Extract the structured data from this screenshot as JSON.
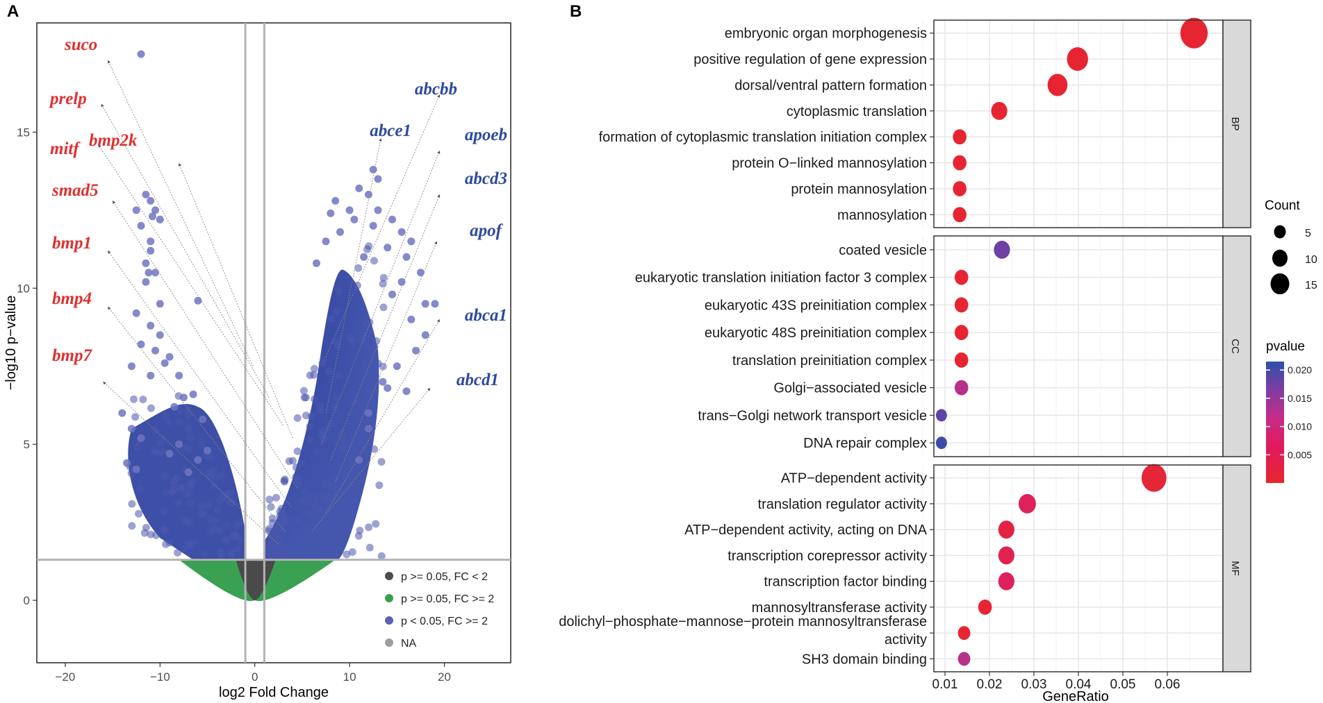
{
  "chart_data": [
    {
      "type": "scatter",
      "panel": "A",
      "xlabel": "log2 Fold Change",
      "ylabel": "−log10 p−value",
      "xlim": [
        -23,
        27
      ],
      "ylim": [
        -2,
        18.5
      ],
      "xticks": [
        -20,
        -10,
        0,
        10,
        20
      ],
      "xtick_labels": [
        "−20",
        "−10",
        "0",
        "10",
        "20"
      ],
      "yticks": [
        0,
        5,
        10,
        15
      ],
      "ytick_labels": [
        "0",
        "5",
        "10",
        "15"
      ],
      "thresholds": {
        "x": [
          -1,
          1
        ],
        "y": 1.3
      },
      "legend": {
        "placement": "bottom-right",
        "entries": [
          {
            "label": "p >= 0.05, FC < 2",
            "color": "#4d4d4d"
          },
          {
            "label": "p >= 0.05, FC >= 2",
            "color": "#3a9f4a"
          },
          {
            "label": "p < 0.05, FC >= 2",
            "color": "#5a62b5"
          },
          {
            "label": "NA",
            "color": "#9e9e9e"
          }
        ]
      },
      "points_sparse": [
        [
          -12,
          17.5
        ],
        [
          -11.5,
          13
        ],
        [
          -11,
          12.8
        ],
        [
          -10.8,
          12.3
        ],
        [
          -10.5,
          12.5
        ],
        [
          -10,
          12.2
        ],
        [
          -11,
          11.5
        ],
        [
          -11,
          11.2
        ],
        [
          -12,
          12
        ],
        [
          -12.5,
          12.5
        ],
        [
          -11.5,
          10.8
        ],
        [
          -11.2,
          10.5
        ],
        [
          -10.5,
          10.5
        ],
        [
          -11.5,
          10.2
        ],
        [
          -10,
          9.5
        ],
        [
          -6,
          9.6
        ],
        [
          -12.5,
          9.2
        ],
        [
          -11,
          8.8
        ],
        [
          -10,
          8.5
        ],
        [
          -12,
          8.2
        ],
        [
          -10.5,
          8
        ],
        [
          -9,
          7.8
        ],
        [
          -11,
          7.2
        ],
        [
          -9.5,
          7.6
        ],
        [
          -8,
          7.2
        ],
        [
          -13,
          7.5
        ],
        [
          -7.5,
          6.5
        ],
        [
          -6.5,
          6.6
        ],
        [
          -8.5,
          6.2
        ],
        [
          -14,
          6
        ],
        [
          -13,
          5.5
        ],
        [
          -12,
          5.2
        ],
        [
          -5.5,
          5.8
        ],
        [
          -6,
          4.5
        ],
        [
          -8,
          5
        ],
        [
          -9,
          4.7
        ],
        [
          -13.5,
          4.4
        ],
        [
          -12.5,
          4.2
        ],
        [
          -7,
          4.1
        ],
        [
          -5,
          4.8
        ],
        [
          6.5,
          10.8
        ],
        [
          7.5,
          11.5
        ],
        [
          8,
          12.4
        ],
        [
          8.5,
          12.8
        ],
        [
          9,
          11.8
        ],
        [
          10,
          12.5
        ],
        [
          11,
          13.2
        ],
        [
          12,
          13
        ],
        [
          12.5,
          13.8
        ],
        [
          13,
          12.5
        ],
        [
          14,
          11.3
        ],
        [
          14.5,
          12.2
        ],
        [
          15.5,
          11.8
        ],
        [
          16.5,
          11.5
        ],
        [
          13,
          13.5
        ],
        [
          10.5,
          12.2
        ],
        [
          16,
          11
        ],
        [
          17.5,
          10.5
        ],
        [
          18,
          9.5
        ],
        [
          16.5,
          9
        ],
        [
          17,
          8
        ],
        [
          15,
          7.5
        ],
        [
          14,
          6.8
        ],
        [
          16,
          6.7
        ],
        [
          18,
          8.5
        ],
        [
          12,
          6
        ],
        [
          19,
          9.5
        ],
        [
          15.5,
          10.2
        ],
        [
          14.5,
          9.8
        ],
        [
          12.5,
          12
        ],
        [
          11.5,
          11
        ],
        [
          13.5,
          7
        ],
        [
          12,
          5.5
        ],
        [
          11,
          4.5
        ]
      ],
      "highlight_labels_left": [
        "suco",
        "prelp",
        "mitf",
        "bmp2k",
        "smad5",
        "bmp1",
        "bmp4",
        "bmp7"
      ],
      "highlight_labels_right": [
        "abcbb",
        "abce1",
        "apoeb",
        "abcd3",
        "apof",
        "abca1",
        "abcd1"
      ],
      "label_color_left": "#e02f2f",
      "label_color_right": "#2e4a9e"
    },
    {
      "type": "scatter",
      "panel": "B",
      "subtype": "dot-plot",
      "xlabel": "GeneRatio",
      "xlim": [
        0.0075,
        0.0725
      ],
      "xticks": [
        0.01,
        0.02,
        0.03,
        0.04,
        0.05,
        0.06
      ],
      "xtick_labels": [
        "0.01",
        "0.02",
        "0.03",
        "0.04",
        "0.05",
        "0.06"
      ],
      "facets": [
        {
          "name": "BP",
          "terms": [
            {
              "label": "embryonic organ morphogenesis",
              "gene_ratio": 0.066,
              "count": 15,
              "pvalue": 0.0005
            },
            {
              "label": "positive regulation of gene expression",
              "gene_ratio": 0.0398,
              "count": 10,
              "pvalue": 0.0005
            },
            {
              "label": "dorsal/ventral pattern formation",
              "gene_ratio": 0.0353,
              "count": 9,
              "pvalue": 0.0005
            },
            {
              "label": "cytoplasmic translation",
              "gene_ratio": 0.0222,
              "count": 6,
              "pvalue": 0.0005
            },
            {
              "label": "formation of cytoplasmic translation initiation complex",
              "gene_ratio": 0.0133,
              "count": 4,
              "pvalue": 0.0005
            },
            {
              "label": "protein O−linked mannosylation",
              "gene_ratio": 0.0133,
              "count": 4,
              "pvalue": 0.0005
            },
            {
              "label": "protein mannosylation",
              "gene_ratio": 0.0133,
              "count": 4,
              "pvalue": 0.0005
            },
            {
              "label": "mannosylation",
              "gene_ratio": 0.0133,
              "count": 4,
              "pvalue": 0.0005
            }
          ]
        },
        {
          "name": "CC",
          "terms": [
            {
              "label": "coated vesicle",
              "gene_ratio": 0.0228,
              "count": 6,
              "pvalue": 0.016
            },
            {
              "label": "eukaryotic translation initiation factor 3 complex",
              "gene_ratio": 0.0137,
              "count": 4,
              "pvalue": 0.0005
            },
            {
              "label": "eukaryotic 43S preinitiation complex",
              "gene_ratio": 0.0137,
              "count": 4,
              "pvalue": 0.0005
            },
            {
              "label": "eukaryotic 48S preinitiation complex",
              "gene_ratio": 0.0137,
              "count": 4,
              "pvalue": 0.0005
            },
            {
              "label": "translation preinitiation complex",
              "gene_ratio": 0.0137,
              "count": 4,
              "pvalue": 0.0005
            },
            {
              "label": "Golgi−associated vesicle",
              "gene_ratio": 0.0137,
              "count": 4,
              "pvalue": 0.009
            },
            {
              "label": "trans−Golgi network transport vesicle",
              "gene_ratio": 0.0092,
              "count": 2,
              "pvalue": 0.0175
            },
            {
              "label": "DNA repair complex",
              "gene_ratio": 0.0092,
              "count": 2,
              "pvalue": 0.0205
            }
          ]
        },
        {
          "name": "MF",
          "terms": [
            {
              "label": "ATP−dependent activity",
              "gene_ratio": 0.057,
              "count": 13,
              "pvalue": 0.001
            },
            {
              "label": "translation regulator activity",
              "gene_ratio": 0.0285,
              "count": 7,
              "pvalue": 0.004
            },
            {
              "label": "ATP−dependent activity, acting on DNA",
              "gene_ratio": 0.0238,
              "count": 6,
              "pvalue": 0.002
            },
            {
              "label": "transcription corepressor activity",
              "gene_ratio": 0.0238,
              "count": 6,
              "pvalue": 0.003
            },
            {
              "label": "transcription factor binding",
              "gene_ratio": 0.0238,
              "count": 6,
              "pvalue": 0.004
            },
            {
              "label": "mannosyltransferase activity",
              "gene_ratio": 0.019,
              "count": 4,
              "pvalue": 0.0005
            },
            {
              "label": "dolichyl−phosphate−mannose−protein mannosyltransferase activity",
              "label_lines": [
                "dolichyl−phosphate−mannose−protein mannosyltransferase",
                "activity"
              ],
              "gene_ratio": 0.0143,
              "count": 3,
              "pvalue": 0.0005
            },
            {
              "label": "SH3 domain binding",
              "gene_ratio": 0.0143,
              "count": 3,
              "pvalue": 0.009
            }
          ]
        }
      ],
      "count_legend": {
        "title": "Count",
        "values": [
          5,
          10,
          15
        ]
      },
      "pvalue_legend": {
        "title": "pvalue",
        "ticks": [
          0.005,
          0.01,
          0.015,
          0.02
        ],
        "tick_labels": [
          "0.005",
          "0.010",
          "0.015",
          "0.020"
        ],
        "range": [
          0,
          0.0215
        ],
        "colors": [
          "#e8262c",
          "#d91f6b",
          "#a63a9a",
          "#6e40a6",
          "#2f4fa8"
        ]
      }
    }
  ],
  "panel_labels": {
    "a": "A",
    "b": "B"
  }
}
